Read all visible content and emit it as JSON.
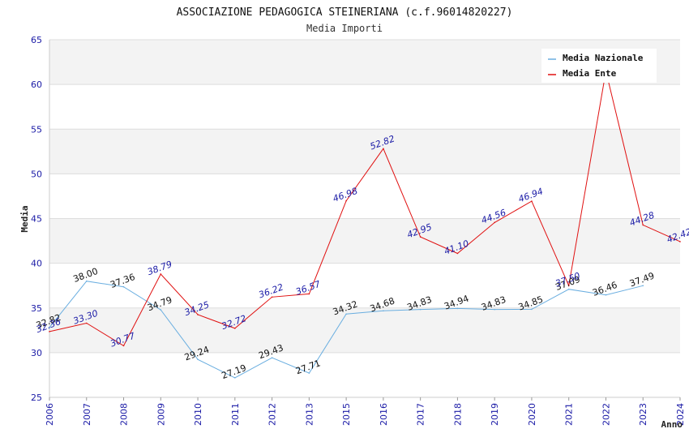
{
  "chart_data": {
    "type": "line",
    "title": "ASSOCIAZIONE PEDAGOGICA STEINERIANA (c.f.96014820227)",
    "subtitle": "Media Importi",
    "xlabel": "Anno",
    "ylabel": "Media",
    "ylim": [
      25,
      65
    ],
    "yticks": [
      "25",
      "30",
      "35",
      "40",
      "45",
      "50",
      "55",
      "60",
      "65"
    ],
    "x": [
      "2006",
      "2007",
      "2008",
      "2009",
      "2010",
      "2011",
      "2012",
      "2013",
      "2015",
      "2016",
      "2017",
      "2018",
      "2019",
      "2020",
      "2021",
      "2022",
      "2023",
      "2024"
    ],
    "grid": true,
    "legend_position": "top-right",
    "series": [
      {
        "name": "Media Nazionale",
        "color": "#6aaee0",
        "values": [
          32.82,
          38.0,
          37.36,
          34.79,
          29.24,
          27.19,
          29.43,
          27.71,
          34.32,
          34.68,
          34.83,
          34.94,
          34.83,
          34.85,
          37.09,
          36.46,
          37.49,
          null
        ],
        "labels": [
          "32.82",
          "38.00",
          "37.36",
          "34.79",
          "29.24",
          "27.19",
          "29.43",
          "27.71",
          "34.32",
          "34.68",
          "34.83",
          "34.94",
          "34.83",
          "34.85",
          "37.09",
          "36.46",
          "37.49",
          ""
        ]
      },
      {
        "name": "Media Ente",
        "color": "#e01010",
        "values": [
          32.36,
          33.3,
          30.77,
          38.79,
          34.25,
          32.72,
          36.22,
          36.57,
          46.98,
          52.82,
          42.95,
          41.1,
          44.56,
          46.94,
          37.5,
          61.5,
          44.28,
          42.42
        ],
        "labels": [
          "32.36",
          "33.30",
          "30.77",
          "38.79",
          "34.25",
          "32.72",
          "36.22",
          "36.57",
          "46.98",
          "52.82",
          "42.95",
          "41.10",
          "44.56",
          "46.94",
          "37.50",
          "",
          "44.28",
          "42.42"
        ]
      }
    ]
  }
}
